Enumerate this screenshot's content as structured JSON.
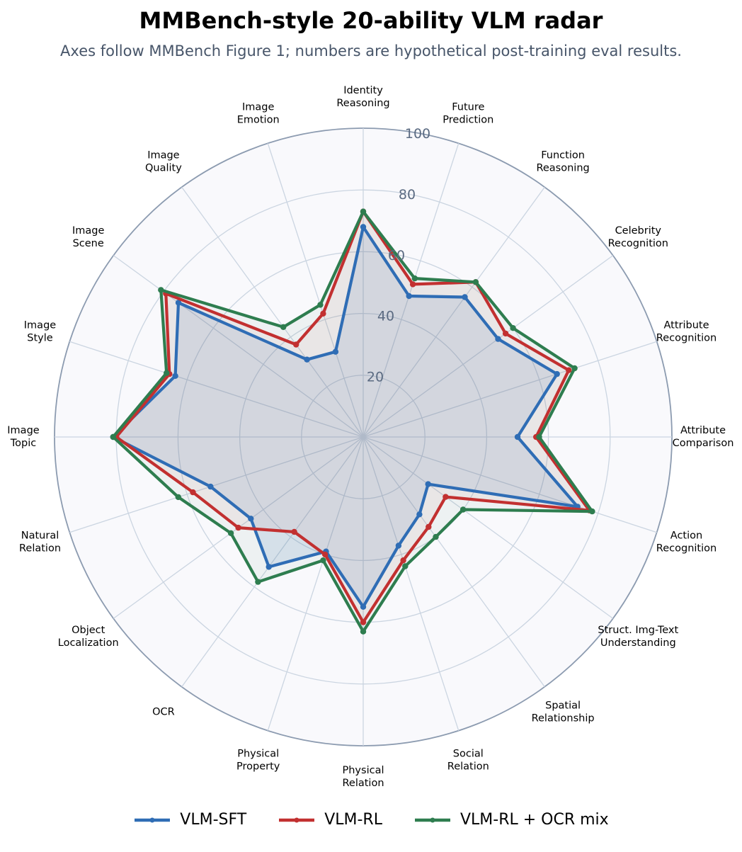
{
  "chart_data": {
    "type": "radar",
    "title": "MMBench-style 20-ability VLM radar",
    "subtitle": "Axes follow MMBench Figure 1; numbers are hypothetical post-training eval results.",
    "axes": [
      [
        "Identity",
        "Reasoning"
      ],
      [
        "Future",
        "Prediction"
      ],
      [
        "Function",
        "Reasoning"
      ],
      [
        "Celebrity",
        "Recognition"
      ],
      [
        "Attribute",
        "Recognition"
      ],
      [
        "Attribute",
        "Comparison"
      ],
      [
        "Action",
        "Recognition"
      ],
      [
        "Struct. Img-Text",
        "Understanding"
      ],
      [
        "Spatial",
        "Relationship"
      ],
      [
        "Social",
        "Relation"
      ],
      [
        "Physical",
        "Relation"
      ],
      [
        "Physical",
        "Property"
      ],
      [
        "OCR"
      ],
      [
        "Object",
        "Localization"
      ],
      [
        "Natural",
        "Relation"
      ],
      [
        "Image",
        "Topic"
      ],
      [
        "Image",
        "Style"
      ],
      [
        "Image",
        "Scene"
      ],
      [
        "Image",
        "Quality"
      ],
      [
        "Image",
        "Emotion"
      ]
    ],
    "r_ticks": [
      "20",
      "40",
      "60",
      "80",
      "100"
    ],
    "r_range": [
      0,
      100
    ],
    "grid": true,
    "legend_position": "bottom",
    "series": [
      {
        "name": "VLM-SFT",
        "color": "#2f6db5",
        "values": [
          68,
          48,
          56,
          54,
          66,
          50,
          73,
          26,
          31,
          37,
          55,
          39,
          52,
          45,
          52,
          81,
          64,
          74,
          31,
          29
        ]
      },
      {
        "name": "VLM-RL",
        "color": "#c23030",
        "values": [
          73,
          52,
          62,
          57,
          70,
          56,
          77,
          33,
          36,
          42,
          60,
          40,
          38,
          50,
          58,
          80,
          66,
          79,
          37,
          42
        ]
      },
      {
        "name": "VLM-RL + OCR mix",
        "color": "#2e7d4f",
        "values": [
          73,
          54,
          62,
          60,
          72,
          57,
          78,
          40,
          40,
          44,
          63,
          42,
          58,
          53,
          63,
          81,
          67,
          81,
          44,
          45
        ]
      }
    ]
  }
}
